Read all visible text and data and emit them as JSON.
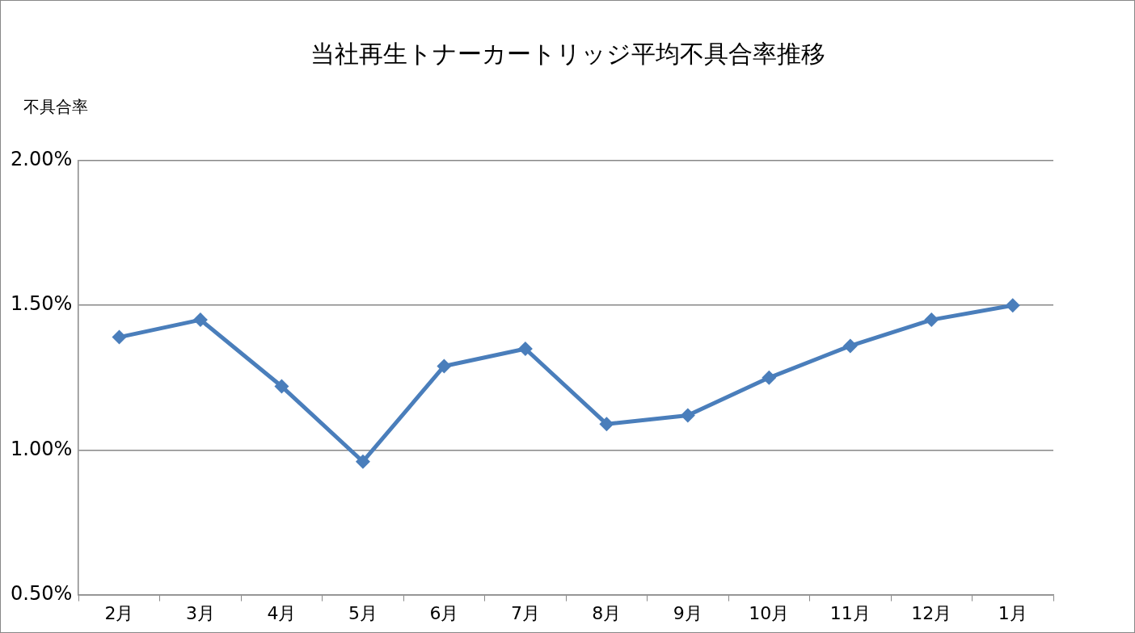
{
  "chart_data": {
    "type": "line",
    "title": "当社再生トナーカートリッジ平均不具合率推移",
    "ylabel": "不具合率",
    "categories": [
      "2月",
      "3月",
      "4月",
      "5月",
      "6月",
      "7月",
      "8月",
      "9月",
      "10月",
      "11月",
      "12月",
      "1月"
    ],
    "series": [
      {
        "color": "#4a7ebb",
        "values": [
          1.39,
          1.45,
          1.22,
          0.96,
          1.29,
          1.35,
          1.09,
          1.12,
          1.25,
          1.36,
          1.45,
          1.5
        ]
      }
    ],
    "ylim": [
      0.5,
      2
    ],
    "yticks": [
      {
        "value": 0.5,
        "label": "0.50%"
      },
      {
        "value": 1,
        "label": "1.00%"
      },
      {
        "value": 1.5,
        "label": "1.50%"
      },
      {
        "value": 2,
        "label": "2.00%"
      }
    ],
    "grid": "y",
    "legend": false,
    "marker": "diamond",
    "line_style": "solid"
  }
}
